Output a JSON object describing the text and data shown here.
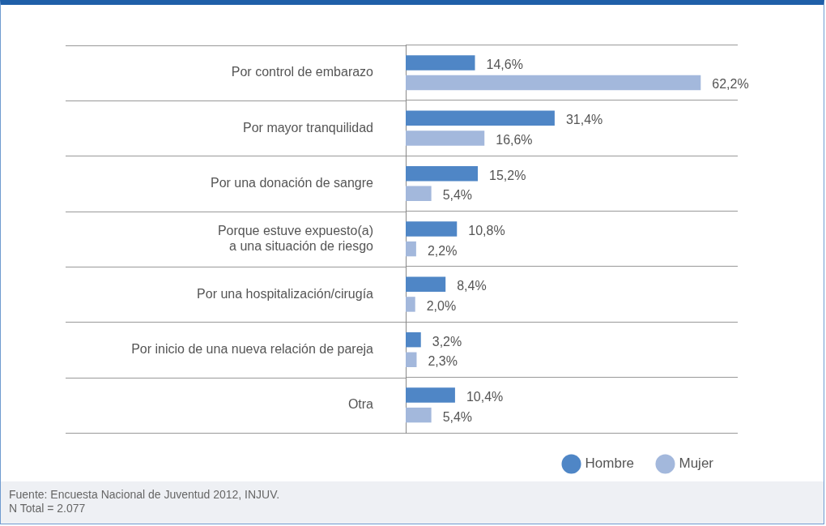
{
  "chart_data": {
    "type": "bar",
    "orientation": "horizontal",
    "categories": [
      "Por control de embarazo",
      "Por mayor tranquilidad",
      "Por una donación de sangre",
      "Porque estuve expuesto(a)\na una situación de riesgo",
      "Por una hospitalización/cirugía",
      "Por inicio de una nueva relación de pareja",
      "Otra"
    ],
    "series": [
      {
        "name": "Hombre",
        "color": "#4f86c6",
        "values": [
          14.6,
          31.4,
          15.2,
          10.8,
          8.4,
          3.2,
          10.4
        ],
        "value_labels": [
          "14,6%",
          "31,4%",
          "15,2%",
          "10,8%",
          "8,4%",
          "3,2%",
          "10,4%"
        ]
      },
      {
        "name": "Mujer",
        "color": "#a3b8dc",
        "values": [
          62.2,
          16.6,
          5.4,
          2.2,
          2.0,
          2.3,
          5.4
        ],
        "value_labels": [
          "62,2%",
          "16,6%",
          "5,4%",
          "2,2%",
          "2,0%",
          "2,3%",
          "5,4%"
        ]
      }
    ],
    "grid": "y",
    "legend": "bottom right",
    "tick_labels": "y",
    "annotations": [
      "Fuente: Encuesta Nacional de Juventud 2012, INJUV.",
      "N Total = 2.077"
    ]
  }
}
